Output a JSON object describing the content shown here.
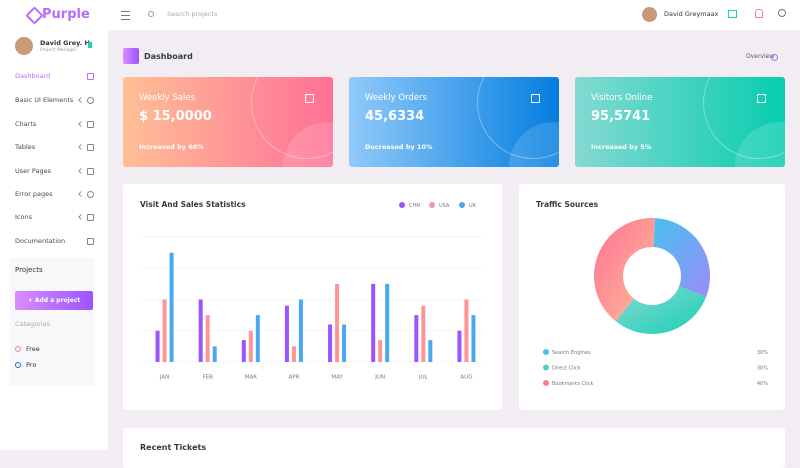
{
  "brand": "Purple",
  "search_placeholder": "Search projects",
  "user_name": "David Greymaax",
  "sidebar": {
    "profile_name": "David Grey. H",
    "profile_role": "Project Manager",
    "nav": [
      "Dashboard",
      "Basic UI Elements",
      "Charts",
      "Tables",
      "User Pages",
      "Error pages",
      "Icons",
      "Documentation"
    ],
    "projects_title": "Projects",
    "add_button": "+ Add a project",
    "categories_title": "Categories",
    "categories": [
      "Free",
      "Pro"
    ]
  },
  "page_title": "Dashboard",
  "overview": "Overview",
  "cards": [
    {
      "title": "Weekly Sales",
      "value": "$ 15,0000",
      "note": "Increased by 60%"
    },
    {
      "title": "Weekly Orders",
      "value": "45,6334",
      "note": "Decreased by 10%"
    },
    {
      "title": "Visitors Online",
      "value": "95,5741",
      "note": "Increased by 5%"
    }
  ],
  "bottom_title": "Recent Tickets",
  "chart_data": [
    {
      "type": "bar",
      "title": "Visit And Sales Statistics",
      "categories": [
        "JAN",
        "FEB",
        "MAR",
        "APR",
        "MAY",
        "JUN",
        "JUL",
        "AUG"
      ],
      "series": [
        {
          "name": "CHN",
          "color": "#9a55ff",
          "values": [
            10,
            20,
            7,
            18,
            12,
            25,
            15,
            10
          ]
        },
        {
          "name": "USA",
          "color": "#fe9496",
          "values": [
            20,
            15,
            10,
            5,
            25,
            7,
            18,
            20
          ]
        },
        {
          "name": "UK",
          "color": "#47a9f0",
          "values": [
            35,
            5,
            15,
            20,
            12,
            25,
            7,
            15
          ]
        }
      ],
      "ylim": [
        0,
        40
      ],
      "grid": true
    },
    {
      "type": "doughnut",
      "title": "Traffic Sources",
      "categories": [
        "Search Engines",
        "Direct Click",
        "Bookmarks Click"
      ],
      "values": [
        30,
        30,
        40
      ],
      "value_labels": [
        "30%",
        "30%",
        "40%"
      ],
      "colors": [
        "#47c1f0",
        "#4fd1be",
        "#fe7c96"
      ]
    }
  ]
}
